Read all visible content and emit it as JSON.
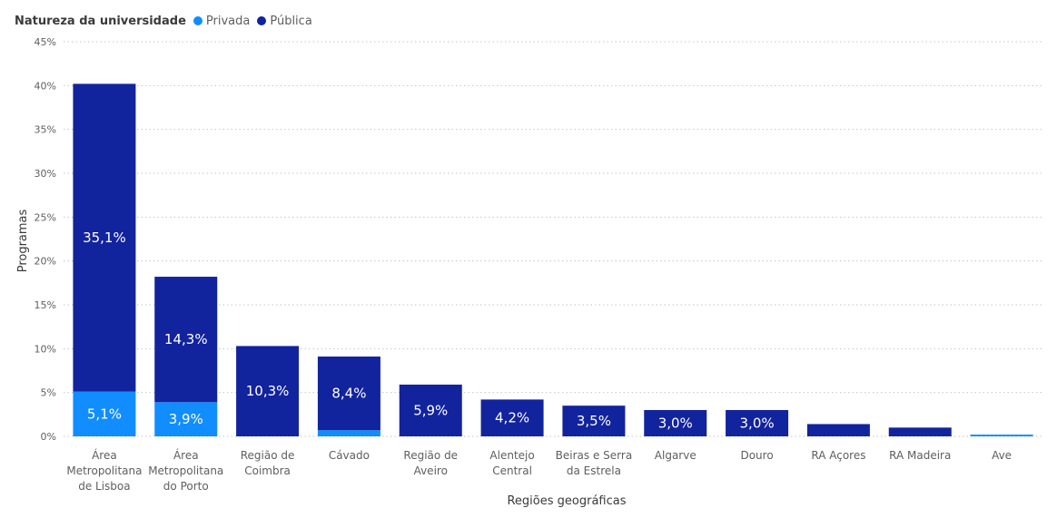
{
  "chart_data": {
    "type": "bar",
    "stacked": true,
    "legend_title": "Natureza da universidade",
    "legend_position": "top-left",
    "categories": [
      [
        "Área",
        "Metropolitana",
        "de Lisboa"
      ],
      [
        "Área",
        "Metropolitana",
        "do Porto"
      ],
      [
        "Região de",
        "Coimbra"
      ],
      [
        "Cávado"
      ],
      [
        "Região de",
        "Aveiro"
      ],
      [
        "Alentejo",
        "Central"
      ],
      [
        "Beiras e Serra",
        "da Estrela"
      ],
      [
        "Algarve"
      ],
      [
        "Douro"
      ],
      [
        "RA Açores"
      ],
      [
        "RA Madeira"
      ],
      [
        "Ave"
      ]
    ],
    "series": [
      {
        "name": "Privada",
        "color": "#118dff",
        "values": [
          5.1,
          3.9,
          0,
          0.7,
          0,
          0,
          0,
          0,
          0,
          0,
          0,
          0.2
        ],
        "labels": [
          "5,1%",
          "3,9%",
          "",
          "",
          "",
          "",
          "",
          "",
          "",
          "",
          "",
          ""
        ]
      },
      {
        "name": "Pública",
        "color": "#12239e",
        "values": [
          35.1,
          14.3,
          10.3,
          8.4,
          5.9,
          4.2,
          3.5,
          3.0,
          3.0,
          1.4,
          1.0,
          0
        ],
        "labels": [
          "35,1%",
          "14,3%",
          "10,3%",
          "8,4%",
          "5,9%",
          "4,2%",
          "3,5%",
          "3,0%",
          "3,0%",
          "",
          "",
          ""
        ]
      }
    ],
    "xlabel": "Regiões geográficas",
    "ylabel": "Programas",
    "ylim": [
      0,
      45
    ],
    "yticks": [
      0,
      5,
      10,
      15,
      20,
      25,
      30,
      35,
      40,
      45
    ],
    "ytick_labels": [
      "0%",
      "5%",
      "10%",
      "15%",
      "20%",
      "25%",
      "30%",
      "35%",
      "40%",
      "45%"
    ],
    "grid": true
  }
}
